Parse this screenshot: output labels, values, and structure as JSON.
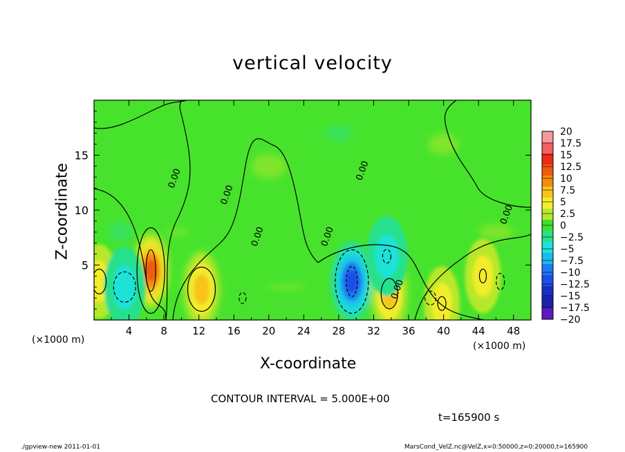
{
  "figure": {
    "title": "vertical velocity",
    "contour_interval": "CONTOUR INTERVAL = 5.000E+00",
    "time_label": "t=165900 s",
    "footer_left": "./gpview-new   2011-01-01",
    "footer_right": "MarsCond_VelZ.nc@VelZ,x=0:50000,z=0:20000,t=165900"
  },
  "chart_data": {
    "type": "heatmap",
    "title": "vertical velocity",
    "xlabel": "X-coordinate",
    "ylabel": "Z-coordinate",
    "x_unit": "(×1000 m)",
    "y_unit": "(×1000 m)",
    "xlim": [
      0,
      50
    ],
    "ylim": [
      0,
      20
    ],
    "x_ticks": [
      "4",
      "8",
      "12",
      "16",
      "20",
      "24",
      "28",
      "32",
      "36",
      "40",
      "44",
      "48"
    ],
    "x_tick_values": [
      4,
      8,
      12,
      16,
      20,
      24,
      28,
      32,
      36,
      40,
      44,
      48
    ],
    "y_ticks": [
      "5",
      "10",
      "15"
    ],
    "y_tick_values": [
      5,
      10,
      15
    ],
    "contour_interval": 5.0,
    "contour_labels": [
      {
        "text": "0.00",
        "x": 9.5,
        "z": 12.8
      },
      {
        "text": "0.00",
        "x": 15.5,
        "z": 11.3
      },
      {
        "text": "0.00",
        "x": 19,
        "z": 7.5
      },
      {
        "text": "0.00",
        "x": 27,
        "z": 7.5
      },
      {
        "text": "0.00",
        "x": 31,
        "z": 13.5
      },
      {
        "text": "0.00",
        "x": 35,
        "z": 2.7
      },
      {
        "text": "0.00",
        "x": 47.5,
        "z": 9.5
      }
    ],
    "features": [
      {
        "kind": "updraft",
        "x": 6.5,
        "z": 4.5,
        "peak": 12
      },
      {
        "kind": "updraft",
        "x": 12.3,
        "z": 2.8,
        "peak": 7
      },
      {
        "kind": "updraft",
        "x": 0.6,
        "z": 3.5,
        "peak": 6
      },
      {
        "kind": "updraft",
        "x": 33.8,
        "z": 2.4,
        "peak": 7
      },
      {
        "kind": "updraft",
        "x": 44.5,
        "z": 4.0,
        "peak": 5
      },
      {
        "kind": "updraft",
        "x": 39.8,
        "z": 1.5,
        "peak": 4
      },
      {
        "kind": "downdraft",
        "x": 29.5,
        "z": 3.5,
        "peak": -12
      },
      {
        "kind": "downdraft",
        "x": 3.5,
        "z": 3.0,
        "peak": -6
      },
      {
        "kind": "downdraft",
        "x": 33.5,
        "z": 5.8,
        "peak": -5
      }
    ],
    "colorbar": {
      "levels": [
        "20",
        "17.5",
        "15",
        "12.5",
        "10",
        "7.5",
        "5",
        "2.5",
        "0",
        "−2.5",
        "−5",
        "−7.5",
        "−10",
        "−12.5",
        "−15",
        "−17.5",
        "−20"
      ],
      "colors": [
        "#f49a9a",
        "#f26262",
        "#ec2a1a",
        "#f05a0c",
        "#f58c0c",
        "#f7c41c",
        "#f2ec2c",
        "#b8e82c",
        "#3ee02c",
        "#28e08c",
        "#1ee2d8",
        "#1cb8f0",
        "#1a7cf0",
        "#1c4ee8",
        "#1a2cc8",
        "#1e20a8",
        "#6018c0"
      ]
    }
  }
}
